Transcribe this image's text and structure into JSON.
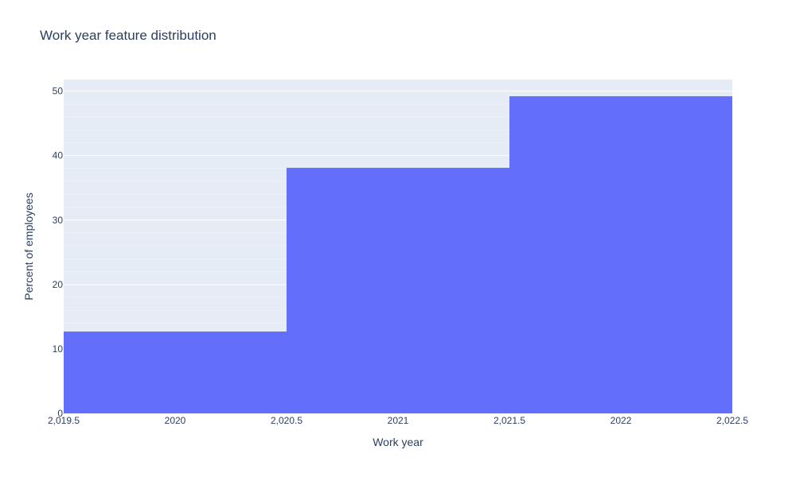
{
  "chart_data": {
    "type": "bar",
    "histogram": true,
    "title": "Work year feature distribution",
    "xlabel": "Work year",
    "ylabel": "Percent of employees",
    "bins": [
      {
        "x0": 2019.5,
        "x1": 2020.5,
        "value": 12.7
      },
      {
        "x0": 2020.5,
        "x1": 2021.5,
        "value": 38.1
      },
      {
        "x0": 2021.5,
        "x1": 2022.5,
        "value": 49.2
      }
    ],
    "xlim": [
      2019.5,
      2022.5
    ],
    "ylim": [
      0,
      51.8
    ],
    "x_ticks": [
      {
        "value": 2019.5,
        "label": "2,019.5"
      },
      {
        "value": 2020,
        "label": "2020"
      },
      {
        "value": 2020.5,
        "label": "2,020.5"
      },
      {
        "value": 2021,
        "label": "2021"
      },
      {
        "value": 2021.5,
        "label": "2,021.5"
      },
      {
        "value": 2022,
        "label": "2022"
      },
      {
        "value": 2022.5,
        "label": "2,022.5"
      }
    ],
    "y_ticks": [
      {
        "value": 0,
        "label": "0"
      },
      {
        "value": 10,
        "label": "10"
      },
      {
        "value": 20,
        "label": "20"
      },
      {
        "value": 30,
        "label": "30"
      },
      {
        "value": 40,
        "label": "40"
      },
      {
        "value": 50,
        "label": "50"
      }
    ],
    "y_minor_step": 2,
    "grid": true,
    "colors": {
      "bar": "#636efa",
      "plot_bg": "#e5ecf6",
      "grid": "#ffffff",
      "text": "#2a3f5f"
    }
  }
}
